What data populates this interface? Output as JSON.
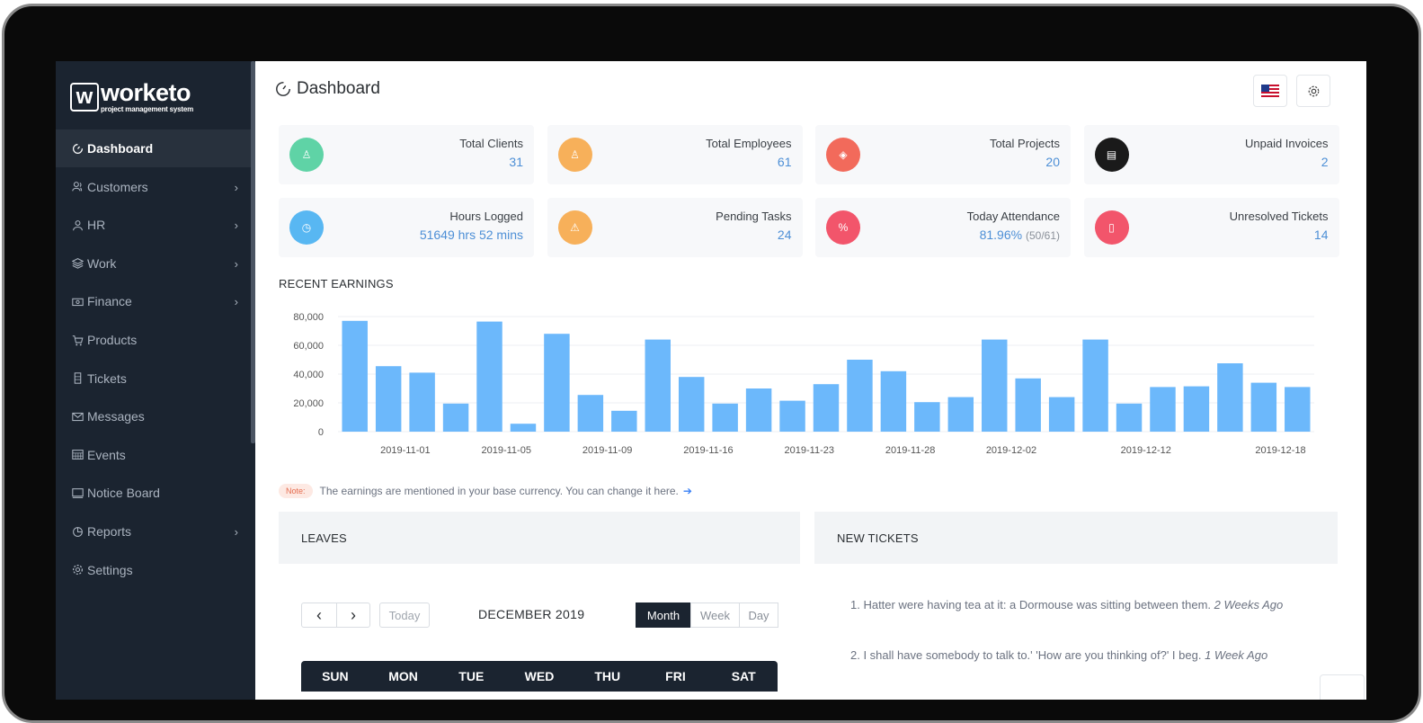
{
  "brand": {
    "mark": "w",
    "name": "worketo",
    "tagline": "project management system"
  },
  "sidebar": {
    "items": [
      {
        "label": "Dashboard",
        "icon": "dashboard-icon",
        "active": true,
        "has_children": false
      },
      {
        "label": "Customers",
        "icon": "users-icon",
        "has_children": true
      },
      {
        "label": "HR",
        "icon": "user-icon",
        "has_children": true
      },
      {
        "label": "Work",
        "icon": "layers-icon",
        "has_children": true
      },
      {
        "label": "Finance",
        "icon": "money-icon",
        "has_children": true
      },
      {
        "label": "Products",
        "icon": "cart-icon",
        "has_children": false
      },
      {
        "label": "Tickets",
        "icon": "ticket-icon",
        "has_children": false
      },
      {
        "label": "Messages",
        "icon": "mail-icon",
        "has_children": false
      },
      {
        "label": "Events",
        "icon": "calendar-icon",
        "has_children": false
      },
      {
        "label": "Notice Board",
        "icon": "screen-icon",
        "has_children": false
      },
      {
        "label": "Reports",
        "icon": "pie-chart-icon",
        "has_children": true
      },
      {
        "label": "Settings",
        "icon": "gear-icon",
        "has_children": false
      }
    ]
  },
  "header": {
    "title": "Dashboard"
  },
  "stats": [
    {
      "label": "Total Clients",
      "value": "31",
      "color": "#5fd3a6",
      "icon": "user-icon"
    },
    {
      "label": "Total Employees",
      "value": "61",
      "color": "#f7b05a",
      "icon": "users-icon"
    },
    {
      "label": "Total Projects",
      "value": "20",
      "color": "#f26a5b",
      "icon": "layers-icon"
    },
    {
      "label": "Unpaid Invoices",
      "value": "2",
      "color": "#1a1a1a",
      "icon": "invoice-icon"
    },
    {
      "label": "Hours Logged",
      "value": "51649 hrs 52 mins",
      "color": "#58b7f2",
      "icon": "clock-icon"
    },
    {
      "label": "Pending Tasks",
      "value": "24",
      "color": "#f7b05a",
      "icon": "warning-icon"
    },
    {
      "label": "Today Attendance",
      "value": "81.96%",
      "extra": "(50/61)",
      "color": "#f2556b",
      "icon": "percent-icon"
    },
    {
      "label": "Unresolved Tickets",
      "value": "14",
      "color": "#f2556b",
      "icon": "ticket-icon"
    }
  ],
  "earnings": {
    "title": "RECENT EARNINGS",
    "note_badge": "Note:",
    "note_text": "The earnings are mentioned in your base currency. You can change it here."
  },
  "chart_data": {
    "type": "bar",
    "xlabel": "",
    "ylabel": "",
    "ylim": [
      0,
      80000
    ],
    "yticks": [
      "0",
      "20,000",
      "40,000",
      "60,000",
      "80,000"
    ],
    "x_tick_labels": [
      "2019-11-01",
      "2019-11-05",
      "2019-11-09",
      "2019-11-16",
      "2019-11-23",
      "2019-11-28",
      "2019-12-02",
      "2019-12-12",
      "2019-12-18"
    ],
    "x_tick_bars": [
      1.5,
      4.5,
      7.5,
      10.5,
      13.5,
      16.5,
      19.5,
      23.5,
      27.5
    ],
    "values": [
      77000,
      45500,
      41000,
      19500,
      76500,
      5500,
      68000,
      25500,
      14500,
      64000,
      38000,
      19500,
      30000,
      21500,
      33000,
      50000,
      42000,
      20500,
      24000,
      64000,
      37000,
      24000,
      64000,
      19500,
      31000,
      31500,
      47500,
      34000,
      31000
    ],
    "bar_color": "#6cb8fb",
    "grid": true
  },
  "leaves": {
    "title": "LEAVES",
    "calendar": {
      "prev": "‹",
      "next": "›",
      "today": "Today",
      "month": "DECEMBER 2019",
      "views": [
        "Month",
        "Week",
        "Day"
      ],
      "active_view": "Month",
      "days": [
        "SUN",
        "MON",
        "TUE",
        "WED",
        "THU",
        "FRI",
        "SAT"
      ]
    }
  },
  "tickets": {
    "title": "NEW TICKETS",
    "items": [
      {
        "text": "1. Hatter were having tea at it: a Dormouse was sitting between them.",
        "time": "2 Weeks Ago"
      },
      {
        "text": "2. I shall have somebody to talk to.' 'How are you thinking of?' I beg.",
        "time": "1 Week Ago"
      }
    ]
  }
}
